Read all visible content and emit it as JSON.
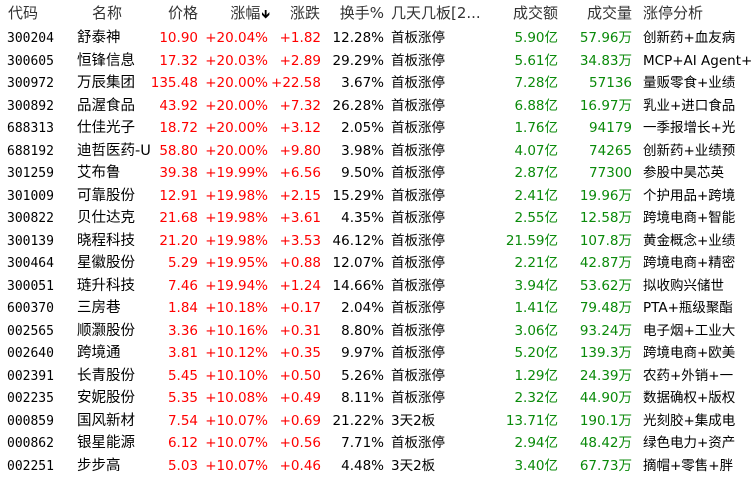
{
  "header": {
    "code": "代码",
    "name": "名称",
    "price": "价格",
    "change_pct": "涨幅",
    "sort_arrow": "🡻",
    "change": "涨跌",
    "turnover": "换手%",
    "boards": "几天几板[2...",
    "amount": "成交额",
    "volume": "成交量",
    "analysis": "涨停分析"
  },
  "colors": {
    "up": "#ff0000",
    "volume": "#0a8a0a"
  },
  "rows": [
    {
      "code": "300204",
      "name": "舒泰神",
      "price": "10.90",
      "pct": "+20.04%",
      "chg": "+1.82",
      "turn": "12.28%",
      "boards": "首板涨停",
      "amount": "5.90亿",
      "volume": "57.96万",
      "analysis": "创新药+血友病"
    },
    {
      "code": "300605",
      "name": "恒锋信息",
      "price": "17.32",
      "pct": "+20.03%",
      "chg": "+2.89",
      "turn": "29.29%",
      "boards": "首板涨停",
      "amount": "5.61亿",
      "volume": "34.83万",
      "analysis": "MCP+AI Agent+"
    },
    {
      "code": "300972",
      "name": "万辰集团",
      "price": "135.48",
      "pct": "+20.00%",
      "chg": "+22.58",
      "turn": "3.67%",
      "boards": "首板涨停",
      "amount": "7.28亿",
      "volume": "57136",
      "analysis": "量贩零食+业绩"
    },
    {
      "code": "300892",
      "name": "品渥食品",
      "price": "43.92",
      "pct": "+20.00%",
      "chg": "+7.32",
      "turn": "26.28%",
      "boards": "首板涨停",
      "amount": "6.88亿",
      "volume": "16.97万",
      "analysis": "乳业+进口食品"
    },
    {
      "code": "688313",
      "name": "仕佳光子",
      "price": "18.72",
      "pct": "+20.00%",
      "chg": "+3.12",
      "turn": "2.05%",
      "boards": "首板涨停",
      "amount": "1.76亿",
      "volume": "94179",
      "analysis": "一季报增长+光"
    },
    {
      "code": "688192",
      "name": "迪哲医药-U",
      "price": "58.80",
      "pct": "+20.00%",
      "chg": "+9.80",
      "turn": "3.98%",
      "boards": "首板涨停",
      "amount": "4.07亿",
      "volume": "74265",
      "analysis": "创新药+业绩预"
    },
    {
      "code": "301259",
      "name": "艾布鲁",
      "price": "39.38",
      "pct": "+19.99%",
      "chg": "+6.56",
      "turn": "9.50%",
      "boards": "首板涨停",
      "amount": "2.87亿",
      "volume": "77300",
      "analysis": "参股中昊芯英"
    },
    {
      "code": "301009",
      "name": "可靠股份",
      "price": "12.91",
      "pct": "+19.98%",
      "chg": "+2.15",
      "turn": "15.29%",
      "boards": "首板涨停",
      "amount": "2.41亿",
      "volume": "19.96万",
      "analysis": "个护用品+跨境"
    },
    {
      "code": "300822",
      "name": "贝仕达克",
      "price": "21.68",
      "pct": "+19.98%",
      "chg": "+3.61",
      "turn": "4.35%",
      "boards": "首板涨停",
      "amount": "2.55亿",
      "volume": "12.58万",
      "analysis": "跨境电商+智能"
    },
    {
      "code": "300139",
      "name": "晓程科技",
      "price": "21.20",
      "pct": "+19.98%",
      "chg": "+3.53",
      "turn": "46.12%",
      "boards": "首板涨停",
      "amount": "21.59亿",
      "volume": "107.8万",
      "analysis": "黄金概念+业绩"
    },
    {
      "code": "300464",
      "name": "星徽股份",
      "price": "5.29",
      "pct": "+19.95%",
      "chg": "+0.88",
      "turn": "12.07%",
      "boards": "首板涨停",
      "amount": "2.21亿",
      "volume": "42.87万",
      "analysis": "跨境电商+精密"
    },
    {
      "code": "300051",
      "name": "琏升科技",
      "price": "7.46",
      "pct": "+19.94%",
      "chg": "+1.24",
      "turn": "14.66%",
      "boards": "首板涨停",
      "amount": "3.94亿",
      "volume": "53.62万",
      "analysis": "拟收购兴储世"
    },
    {
      "code": "600370",
      "name": "三房巷",
      "price": "1.84",
      "pct": "+10.18%",
      "chg": "+0.17",
      "turn": "2.04%",
      "boards": "首板涨停",
      "amount": "1.41亿",
      "volume": "79.48万",
      "analysis": "PTA+瓶级聚酯"
    },
    {
      "code": "002565",
      "name": "顺灏股份",
      "price": "3.36",
      "pct": "+10.16%",
      "chg": "+0.31",
      "turn": "8.80%",
      "boards": "首板涨停",
      "amount": "3.06亿",
      "volume": "93.24万",
      "analysis": "电子烟+工业大"
    },
    {
      "code": "002640",
      "name": "跨境通",
      "price": "3.81",
      "pct": "+10.12%",
      "chg": "+0.35",
      "turn": "9.97%",
      "boards": "首板涨停",
      "amount": "5.20亿",
      "volume": "139.3万",
      "analysis": "跨境电商+欧美"
    },
    {
      "code": "002391",
      "name": "长青股份",
      "price": "5.45",
      "pct": "+10.10%",
      "chg": "+0.50",
      "turn": "5.26%",
      "boards": "首板涨停",
      "amount": "1.29亿",
      "volume": "24.39万",
      "analysis": "农药+外销+一"
    },
    {
      "code": "002235",
      "name": "安妮股份",
      "price": "5.35",
      "pct": "+10.08%",
      "chg": "+0.49",
      "turn": "8.11%",
      "boards": "首板涨停",
      "amount": "2.32亿",
      "volume": "44.90万",
      "analysis": "数据确权+版权"
    },
    {
      "code": "000859",
      "name": "国风新材",
      "price": "7.54",
      "pct": "+10.07%",
      "chg": "+0.69",
      "turn": "21.22%",
      "boards": "3天2板",
      "amount": "13.71亿",
      "volume": "190.1万",
      "analysis": "光刻胶+集成电"
    },
    {
      "code": "000862",
      "name": "银星能源",
      "price": "6.12",
      "pct": "+10.07%",
      "chg": "+0.56",
      "turn": "7.71%",
      "boards": "首板涨停",
      "amount": "2.94亿",
      "volume": "48.42万",
      "analysis": "绿色电力+资产"
    },
    {
      "code": "002251",
      "name": "步步高",
      "price": "5.03",
      "pct": "+10.07%",
      "chg": "+0.46",
      "turn": "4.48%",
      "boards": "3天2板",
      "amount": "3.40亿",
      "volume": "67.73万",
      "analysis": "摘帽+零售+胖"
    }
  ]
}
